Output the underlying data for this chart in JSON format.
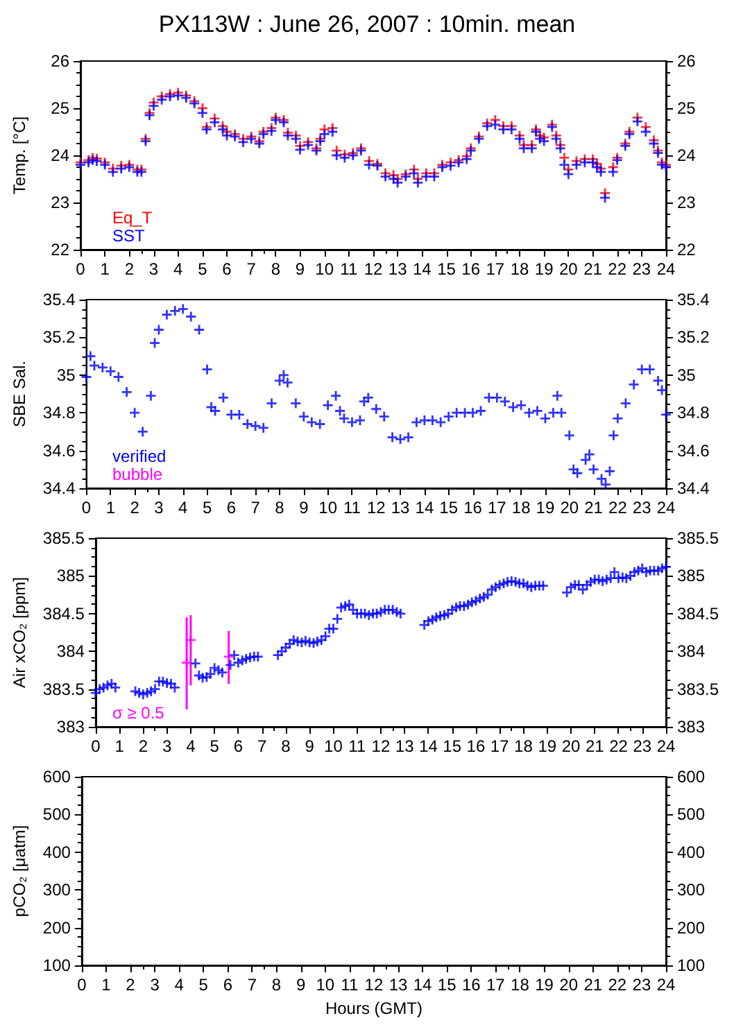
{
  "chart_data": [
    {
      "type": "scatter",
      "title": "PX113W : June 26, 2007 : 10min. mean",
      "ylabel": "Temp. [°C]",
      "xlim": [
        0,
        24
      ],
      "xticks": [
        0,
        1,
        2,
        3,
        4,
        5,
        6,
        7,
        8,
        9,
        10,
        11,
        12,
        13,
        14,
        15,
        16,
        17,
        18,
        19,
        20,
        21,
        22,
        23,
        24
      ],
      "ylim": [
        22,
        26
      ],
      "yticks": [
        22,
        23,
        24,
        25,
        26
      ],
      "y2lim": [
        22,
        26
      ],
      "y2ticks": [
        22,
        23,
        24,
        25,
        26
      ],
      "marker": "cross",
      "grid": false,
      "legend": "bottom left",
      "x": [
        0,
        0.33,
        0.5,
        0.67,
        1,
        1.33,
        1.67,
        2,
        2.33,
        2.5,
        2.67,
        2.83,
        3,
        3.33,
        3.67,
        4,
        4.33,
        4.67,
        5,
        5.17,
        5.5,
        5.83,
        6,
        6.33,
        6.67,
        7,
        7.33,
        7.5,
        7.83,
        8,
        8.33,
        8.5,
        8.83,
        9,
        9.33,
        9.67,
        9.83,
        10,
        10.33,
        10.5,
        10.83,
        11.17,
        11.5,
        11.83,
        12.17,
        12.5,
        12.83,
        13,
        13.33,
        13.67,
        13.83,
        14.17,
        14.5,
        14.83,
        15.17,
        15.5,
        15.83,
        16,
        16.33,
        16.67,
        17,
        17.33,
        17.67,
        18,
        18.17,
        18.5,
        18.67,
        18.83,
        19,
        19.33,
        19.5,
        19.67,
        19.83,
        20,
        20.33,
        20.67,
        21,
        21.17,
        21.33,
        21.5,
        21.83,
        22,
        22.33,
        22.5,
        22.83,
        23.17,
        23.5,
        23.67,
        23.83,
        24
      ],
      "series": [
        {
          "name": "Eq_T",
          "color": "#ff0000",
          "values": [
            23.85,
            23.9,
            23.95,
            23.93,
            23.85,
            23.72,
            23.78,
            23.8,
            23.7,
            23.7,
            24.35,
            24.9,
            25.12,
            25.25,
            25.3,
            25.33,
            25.27,
            25.15,
            25.0,
            24.6,
            24.78,
            24.62,
            24.5,
            24.45,
            24.35,
            24.4,
            24.3,
            24.5,
            24.58,
            24.8,
            24.75,
            24.48,
            24.42,
            24.2,
            24.28,
            24.15,
            24.35,
            24.55,
            24.58,
            24.1,
            24.02,
            24.05,
            24.15,
            23.88,
            23.82,
            23.62,
            23.58,
            23.5,
            23.6,
            23.7,
            23.5,
            23.62,
            23.62,
            23.8,
            23.85,
            23.9,
            23.98,
            24.15,
            24.4,
            24.68,
            24.75,
            24.62,
            24.62,
            24.42,
            24.22,
            24.22,
            24.55,
            24.42,
            24.38,
            24.65,
            24.42,
            24.22,
            23.95,
            23.7,
            23.88,
            23.92,
            23.92,
            23.82,
            23.72,
            23.2,
            23.75,
            23.95,
            24.25,
            24.5,
            24.8,
            24.6,
            24.32,
            24.1,
            23.85,
            23.8
          ]
        },
        {
          "name": "SST",
          "color": "#0000ff",
          "values": [
            23.8,
            23.85,
            23.9,
            23.88,
            23.8,
            23.65,
            23.72,
            23.75,
            23.65,
            23.65,
            24.3,
            24.85,
            25.05,
            25.18,
            25.25,
            25.27,
            25.22,
            25.1,
            24.9,
            24.55,
            24.7,
            24.55,
            24.42,
            24.4,
            24.28,
            24.35,
            24.25,
            24.45,
            24.52,
            24.75,
            24.7,
            24.42,
            24.35,
            24.12,
            24.22,
            24.1,
            24.3,
            24.45,
            24.5,
            24.0,
            23.95,
            24.0,
            24.1,
            23.8,
            23.78,
            23.55,
            23.5,
            23.42,
            23.55,
            23.62,
            23.42,
            23.55,
            23.55,
            23.75,
            23.78,
            23.85,
            23.92,
            24.1,
            24.35,
            24.62,
            24.65,
            24.55,
            24.55,
            24.35,
            24.15,
            24.15,
            24.5,
            24.35,
            24.3,
            24.6,
            24.35,
            24.15,
            23.8,
            23.6,
            23.8,
            23.85,
            23.85,
            23.75,
            23.65,
            23.1,
            23.65,
            23.9,
            24.2,
            24.45,
            24.72,
            24.5,
            24.25,
            24.05,
            23.8,
            23.75
          ]
        }
      ]
    },
    {
      "type": "scatter",
      "ylabel": "SBE Sal.",
      "xlim": [
        0,
        24
      ],
      "xticks": [
        0,
        1,
        2,
        3,
        4,
        5,
        6,
        7,
        8,
        9,
        10,
        11,
        12,
        13,
        14,
        15,
        16,
        17,
        18,
        19,
        20,
        21,
        22,
        23,
        24
      ],
      "ylim": [
        34.4,
        35.4
      ],
      "yticks": [
        34.4,
        34.6,
        34.8,
        35,
        35.2,
        35.4
      ],
      "y2lim": [
        34.4,
        35.4
      ],
      "y2ticks": [
        34.4,
        34.6,
        34.8,
        35,
        35.2,
        35.4
      ],
      "marker": "cross",
      "grid": false,
      "legend": "bottom left",
      "series": [
        {
          "name": "verified",
          "color": "#0000ff",
          "x": [
            0,
            0.17,
            0.33,
            0.67,
            1,
            1.33,
            1.67,
            2,
            2.33,
            2.67,
            2.83,
            3,
            3.33,
            3.67,
            4,
            4.33,
            4.67,
            5,
            5.17,
            5.33,
            5.67,
            6,
            6.33,
            6.67,
            7,
            7.33,
            7.67,
            8,
            8.17,
            8.33,
            8.67,
            9,
            9.33,
            9.67,
            10,
            10.33,
            10.5,
            10.67,
            11,
            11.33,
            11.5,
            11.67,
            12,
            12.33,
            12.67,
            13,
            13.33,
            13.67,
            14,
            14.33,
            14.67,
            15,
            15.33,
            15.67,
            16,
            16.33,
            16.67,
            17,
            17.33,
            17.67,
            18,
            18.33,
            18.67,
            19,
            19.33,
            19.5,
            19.67,
            20,
            20.17,
            20.33,
            20.67,
            20.83,
            21,
            21.33,
            21.5,
            21.67,
            21.83,
            22,
            22.33,
            22.67,
            23,
            23.33,
            23.67,
            23.83,
            24
          ],
          "values": [
            34.99,
            35.1,
            35.05,
            35.04,
            35.02,
            34.99,
            34.91,
            34.8,
            34.7,
            34.89,
            35.17,
            35.24,
            35.32,
            35.34,
            35.35,
            35.31,
            35.24,
            35.03,
            34.83,
            34.81,
            34.88,
            34.79,
            34.79,
            34.74,
            34.73,
            34.72,
            34.85,
            34.97,
            35.0,
            34.96,
            34.85,
            34.78,
            34.75,
            34.74,
            34.84,
            34.89,
            34.81,
            34.77,
            34.75,
            34.76,
            34.86,
            34.88,
            34.82,
            34.78,
            34.67,
            34.66,
            34.67,
            34.75,
            34.76,
            34.76,
            34.75,
            34.78,
            34.8,
            34.8,
            34.8,
            34.81,
            34.88,
            34.88,
            34.86,
            34.83,
            34.84,
            34.8,
            34.81,
            34.77,
            34.8,
            34.89,
            34.8,
            34.68,
            34.5,
            34.48,
            34.55,
            34.58,
            34.5,
            34.45,
            34.42,
            34.49,
            34.68,
            34.77,
            34.85,
            34.95,
            35.03,
            35.03,
            34.97,
            34.92,
            34.79
          ]
        },
        {
          "name": "bubble",
          "color": "#ff00ff"
        }
      ]
    },
    {
      "type": "scatter",
      "ylabel": "Air xCO₂ [ppm]",
      "xlim": [
        0,
        24
      ],
      "xticks": [
        0,
        1,
        2,
        3,
        4,
        5,
        6,
        7,
        8,
        9,
        10,
        11,
        12,
        13,
        14,
        15,
        16,
        17,
        18,
        19,
        20,
        21,
        22,
        23,
        24
      ],
      "ylim": [
        383,
        385.5
      ],
      "yticks": [
        383,
        383.5,
        384,
        384.5,
        385,
        385.5
      ],
      "y2lim": [
        383,
        385.5
      ],
      "y2ticks": [
        383,
        383.5,
        384,
        384.5,
        385,
        385.5
      ],
      "marker": "cross",
      "grid": false,
      "legend": "bottom left",
      "series": [
        {
          "color": "#0000ff",
          "x": [
            0,
            0.17,
            0.33,
            0.5,
            0.67,
            0.83,
            1.67,
            1.83,
            2,
            2.17,
            2.33,
            2.5,
            2.67,
            2.83,
            3,
            3.17,
            3.33,
            4.2,
            4.35,
            4.5,
            4.67,
            4.83,
            5,
            5.17,
            5.33,
            5.67,
            5.83,
            6,
            6.17,
            6.33,
            6.5,
            6.67,
            6.83,
            7.67,
            7.83,
            8,
            8.17,
            8.33,
            8.5,
            8.67,
            8.83,
            9,
            9.17,
            9.33,
            9.5,
            9.67,
            9.83,
            10,
            10.17,
            10.33,
            10.5,
            10.67,
            10.83,
            11,
            11.17,
            11.33,
            11.5,
            11.67,
            11.83,
            12,
            12.17,
            12.33,
            12.5,
            12.67,
            12.83,
            13.83,
            14,
            14.17,
            14.33,
            14.5,
            14.67,
            14.83,
            15,
            15.17,
            15.33,
            15.5,
            15.67,
            15.83,
            16,
            16.17,
            16.33,
            16.5,
            16.67,
            16.83,
            17,
            17.17,
            17.33,
            17.5,
            17.67,
            17.83,
            18,
            18.17,
            18.33,
            18.5,
            18.67,
            18.83,
            19.83,
            20,
            20.17,
            20.33,
            20.5,
            20.67,
            20.83,
            21,
            21.17,
            21.33,
            21.5,
            21.67,
            21.83,
            22,
            22.17,
            22.33,
            22.5,
            22.67,
            22.83,
            23,
            23.17,
            23.33,
            23.5,
            23.67,
            23.83,
            24
          ],
          "values": [
            383.45,
            383.5,
            383.52,
            383.55,
            383.57,
            383.52,
            383.47,
            383.45,
            383.43,
            383.45,
            383.47,
            383.5,
            383.6,
            383.6,
            383.58,
            383.57,
            383.52,
            383.84,
            383.68,
            383.65,
            383.66,
            383.7,
            383.78,
            383.75,
            383.72,
            383.82,
            383.95,
            383.85,
            383.88,
            383.9,
            383.92,
            383.93,
            383.93,
            383.95,
            384.0,
            384.05,
            384.1,
            384.15,
            384.13,
            384.12,
            384.14,
            384.12,
            384.11,
            384.13,
            384.15,
            384.2,
            384.3,
            384.3,
            384.43,
            384.58,
            384.6,
            384.62,
            384.55,
            384.5,
            384.5,
            384.5,
            384.48,
            384.5,
            384.5,
            384.52,
            384.55,
            384.55,
            384.55,
            384.52,
            384.5,
            384.35,
            384.4,
            384.42,
            384.45,
            384.47,
            384.48,
            384.5,
            384.55,
            384.58,
            384.6,
            384.6,
            384.62,
            384.65,
            384.67,
            384.7,
            384.72,
            384.75,
            384.82,
            384.85,
            384.88,
            384.9,
            384.92,
            384.93,
            384.92,
            384.9,
            384.9,
            384.87,
            384.85,
            384.87,
            384.87,
            384.87,
            384.78,
            384.85,
            384.88,
            384.88,
            384.82,
            384.88,
            384.92,
            384.95,
            384.95,
            384.93,
            384.95,
            384.97,
            385.05,
            384.97,
            384.98,
            384.97,
            385.0,
            385.05,
            385.07,
            385.1,
            385.05,
            385.07,
            385.07,
            385.07,
            385.1,
            385.12
          ]
        },
        {
          "name": "σ ≥ 0.5",
          "color": "#ff00ff",
          "x": [
            3.83,
            4.0,
            5.6
          ],
          "values": [
            383.85,
            384.15,
            383.93
          ],
          "errors": [
            [
              383.23,
              384.45
            ],
            [
              383.55,
              384.48
            ],
            [
              383.57,
              384.27
            ]
          ]
        }
      ]
    },
    {
      "type": "scatter",
      "ylabel": "pCO₂ [μatm]",
      "xlabel": "Hours (GMT)",
      "xlim": [
        0,
        24
      ],
      "xticks": [
        0,
        1,
        2,
        3,
        4,
        5,
        6,
        7,
        8,
        9,
        10,
        11,
        12,
        13,
        14,
        15,
        16,
        17,
        18,
        19,
        20,
        21,
        22,
        23,
        24
      ],
      "ylim": [
        100,
        600
      ],
      "yticks": [
        100,
        200,
        300,
        400,
        500,
        600
      ],
      "y2lim": [
        100,
        600
      ],
      "y2ticks": [
        100,
        200,
        300,
        400,
        500,
        600
      ],
      "marker": "cross",
      "grid": false
    }
  ]
}
